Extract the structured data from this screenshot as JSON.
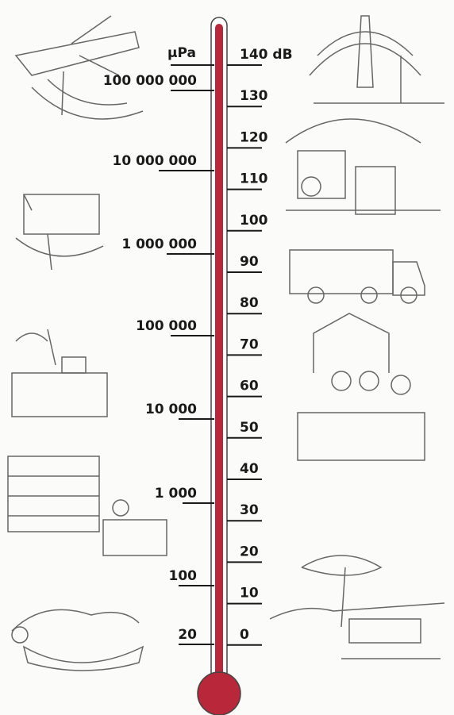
{
  "left_scale": {
    "unit": "μPa",
    "labels": [
      "100 000 000",
      "10 000 000",
      "1 000 000",
      "100 000",
      "10 000",
      "1 000",
      "100",
      "20"
    ]
  },
  "right_scale": {
    "labels": [
      "140 dB",
      "130",
      "120",
      "110",
      "100",
      "90",
      "80",
      "70",
      "60",
      "50",
      "40",
      "30",
      "20",
      "10",
      "0"
    ]
  }
}
